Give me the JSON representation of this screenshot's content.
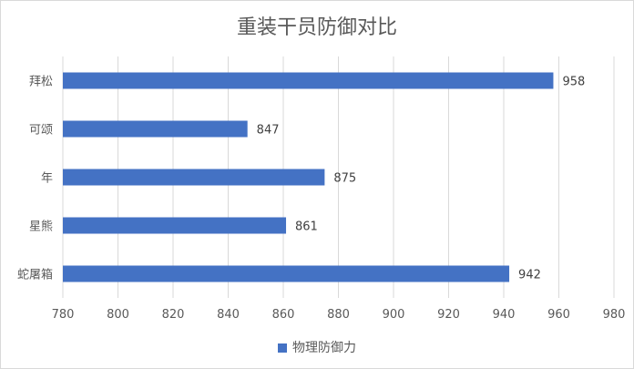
{
  "chart_data": {
    "type": "bar",
    "orientation": "horizontal",
    "title": "重装干员防御对比",
    "categories": [
      "拜松",
      "可颂",
      "年",
      "星熊",
      "蛇屠箱"
    ],
    "series": [
      {
        "name": "物理防御力",
        "values": [
          958,
          847,
          875,
          861,
          942
        ],
        "color": "#4472c4"
      }
    ],
    "xlim": [
      780,
      980
    ],
    "xticks": [
      "780",
      "800",
      "820",
      "840",
      "860",
      "880",
      "900",
      "920",
      "940",
      "960",
      "980"
    ],
    "grid": true,
    "legend_position": "bottom",
    "data_labels": [
      "958",
      "847",
      "875",
      "861",
      "942"
    ]
  }
}
